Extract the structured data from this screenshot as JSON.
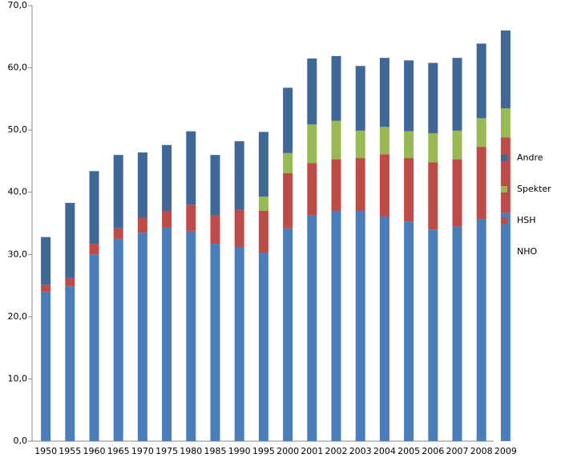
{
  "chart_data": {
    "type": "stacked_bar",
    "categories": [
      "1950",
      "1955",
      "1960",
      "1965",
      "1970",
      "1975",
      "1980",
      "1985",
      "1990",
      "1995",
      "2000",
      "2001",
      "2002",
      "2003",
      "2004",
      "2005",
      "2006",
      "2007",
      "2008",
      "2009"
    ],
    "series": [
      {
        "name": "NHO",
        "color": "#4a7ebb",
        "values": [
          24.0,
          24.9,
          30.0,
          32.5,
          33.5,
          34.3,
          33.8,
          31.7,
          31.2,
          30.3,
          34.2,
          36.3,
          37.0,
          37.0,
          36.1,
          35.3,
          34.0,
          34.5,
          35.7,
          36.7
        ]
      },
      {
        "name": "HSH",
        "color": "#be4b48",
        "values": [
          1.1,
          1.3,
          1.7,
          1.7,
          2.4,
          2.7,
          4.2,
          4.6,
          6.0,
          6.7,
          8.9,
          8.4,
          8.3,
          8.5,
          10.0,
          10.2,
          10.8,
          10.8,
          11.6,
          12.1
        ]
      },
      {
        "name": "Spekter",
        "color": "#98b954",
        "values": [
          0,
          0,
          0,
          0,
          0,
          0,
          0,
          0,
          0,
          2.3,
          3.2,
          6.2,
          6.2,
          4.4,
          4.4,
          4.3,
          4.7,
          4.6,
          4.6,
          4.7
        ]
      },
      {
        "name": "Andre",
        "color": "#3f6797",
        "values": [
          7.7,
          12.1,
          11.7,
          11.8,
          10.5,
          10.6,
          11.8,
          9.7,
          11.0,
          10.4,
          10.5,
          10.6,
          10.4,
          10.4,
          11.1,
          11.4,
          11.3,
          11.7,
          12.0,
          12.5
        ]
      }
    ],
    "ylim": [
      0,
      70
    ],
    "yticks": [
      {
        "value": 0,
        "label": "0,0"
      },
      {
        "value": 10,
        "label": "10,0"
      },
      {
        "value": 20,
        "label": "20,0"
      },
      {
        "value": 30,
        "label": "30,0"
      },
      {
        "value": 40,
        "label": "40,0"
      },
      {
        "value": 50,
        "label": "50,0"
      },
      {
        "value": 60,
        "label": "60,0"
      },
      {
        "value": 70,
        "label": "70,0"
      }
    ],
    "grid": false,
    "legend": "right"
  }
}
